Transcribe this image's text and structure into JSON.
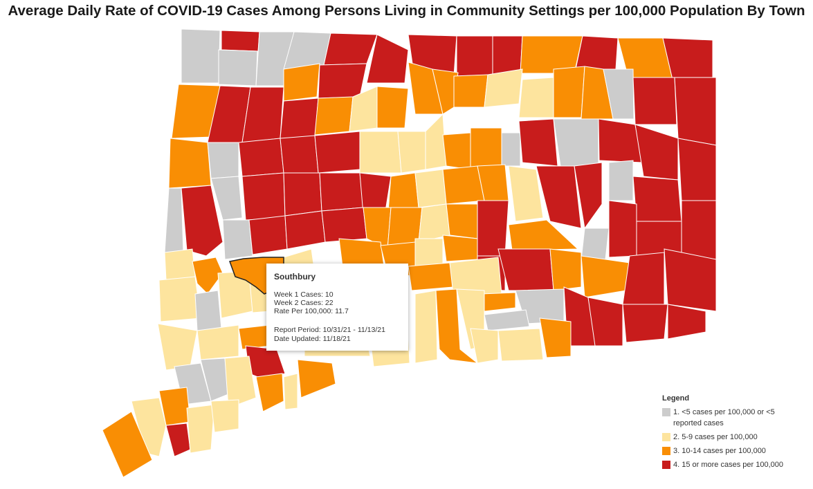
{
  "title": "Average Daily Rate of COVID-19 Cases Among Persons Living in Community Settings per 100,000 Population By Town",
  "colors": {
    "cat1": "#cccccc",
    "cat2": "#fde49e",
    "cat3": "#f98e04",
    "cat4": "#c81c1c",
    "border": "#ffffff",
    "highlight_border": "#222222"
  },
  "tooltip": {
    "town": "Southbury",
    "week1": "Week 1 Cases: 10",
    "week2": "Week 2 Cases: 22",
    "rate": "Rate Per 100,000: 11.7",
    "period": "Report Period: 10/31/21 - 11/13/21",
    "updated": "Date Updated: 11/18/21"
  },
  "legend": {
    "title": "Legend",
    "items": [
      {
        "label": "1. <5 cases per 100,000 or <5 reported cases",
        "color": "#cccccc"
      },
      {
        "label": "2. 5-9 cases per 100,000",
        "color": "#fde49e"
      },
      {
        "label": "3. 10-14 cases per 100,000",
        "color": "#f98e04"
      },
      {
        "label": "4. 15 or more cases per 100,000",
        "color": "#c81c1c"
      }
    ]
  }
}
